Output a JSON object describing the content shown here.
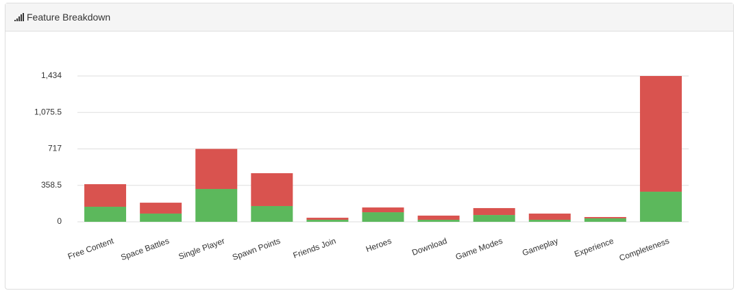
{
  "header": {
    "title": "Feature Breakdown"
  },
  "chart_data": {
    "type": "stacked-bar",
    "categories": [
      "Free Content",
      "Space Battles",
      "Single Player",
      "Spawn Points",
      "Friends Join",
      "Heroes",
      "Download",
      "Game Modes",
      "Gameplay",
      "Experience",
      "Completeness"
    ],
    "series": [
      {
        "color": "#5cb85c",
        "values": [
          148,
          81,
          323,
          155,
          20,
          94,
          20,
          67,
          20,
          34,
          296
        ]
      },
      {
        "color": "#d9534f",
        "values": [
          222,
          107,
          394,
          323,
          20,
          47,
          41,
          68,
          61,
          13,
          1138
        ]
      }
    ],
    "ylim": [
      0,
      1434
    ],
    "yticks": [
      0,
      358.5,
      717,
      {
        "value": 1075.5,
        "label": "1,075.5"
      },
      {
        "value": 1434,
        "label": "1,434"
      }
    ],
    "grid": true
  }
}
